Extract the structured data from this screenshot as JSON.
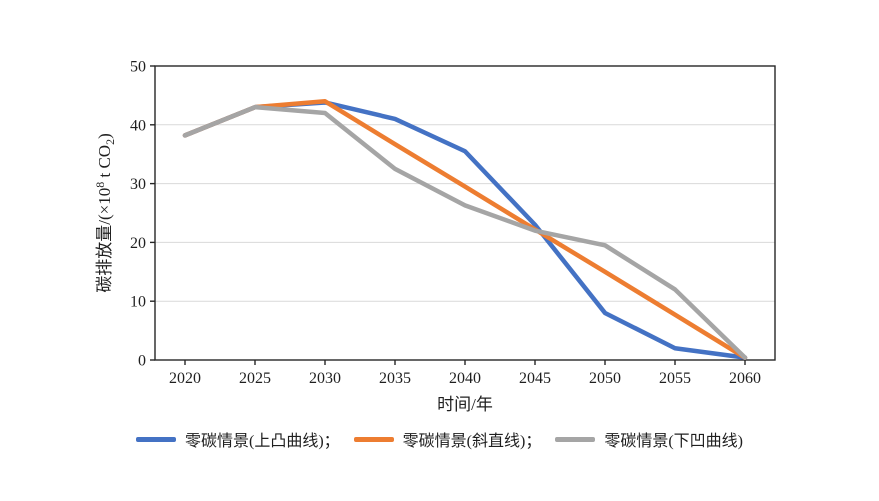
{
  "figure": {
    "background_color": "#ffffff",
    "axis_color": "#262626",
    "gridline_color": "#d9d9d9",
    "text_color": "#1f1f1f"
  },
  "chart_data": {
    "type": "line",
    "title": "",
    "xlabel": "时间/年",
    "ylabel": "碳排放量/(×10⁸ t CO₂)",
    "ylabel_parts": {
      "pre": "碳排放量/(×10",
      "sup": "8",
      "mid": " t CO",
      "sub": "2",
      "post": ")"
    },
    "x": [
      2020,
      2025,
      2030,
      2035,
      2040,
      2045,
      2050,
      2055,
      2060
    ],
    "xticks": [
      "2020",
      "2025",
      "2030",
      "2035",
      "2040",
      "2045",
      "2050",
      "2055",
      "2060"
    ],
    "ylim": [
      0,
      50
    ],
    "yticks": [
      0,
      10,
      20,
      30,
      40,
      50
    ],
    "grid": "horizontal",
    "legend_position": "bottom",
    "series": [
      {
        "name": "零碳情景(上凸曲线)",
        "color": "#4472C4",
        "values": [
          38.2,
          43.0,
          43.8,
          41.0,
          35.5,
          23.0,
          8.0,
          2.0,
          0.4
        ]
      },
      {
        "name": "零碳情景(斜直线)",
        "color": "#ED7D31",
        "values": [
          38.2,
          43.0,
          44.0,
          36.7,
          29.5,
          22.2,
          15.0,
          7.7,
          0.4
        ]
      },
      {
        "name": "零碳情景(下凹曲线)",
        "color": "#A5A5A5",
        "values": [
          38.2,
          43.0,
          42.0,
          32.5,
          26.3,
          22.0,
          19.5,
          12.0,
          0.4
        ]
      }
    ],
    "legend": [
      {
        "label": "零碳情景(上凸曲线)；",
        "color": "#4472C4"
      },
      {
        "label": "零碳情景(斜直线)；",
        "color": "#ED7D31"
      },
      {
        "label": "零碳情景(下凹曲线)",
        "color": "#A5A5A5"
      }
    ]
  }
}
